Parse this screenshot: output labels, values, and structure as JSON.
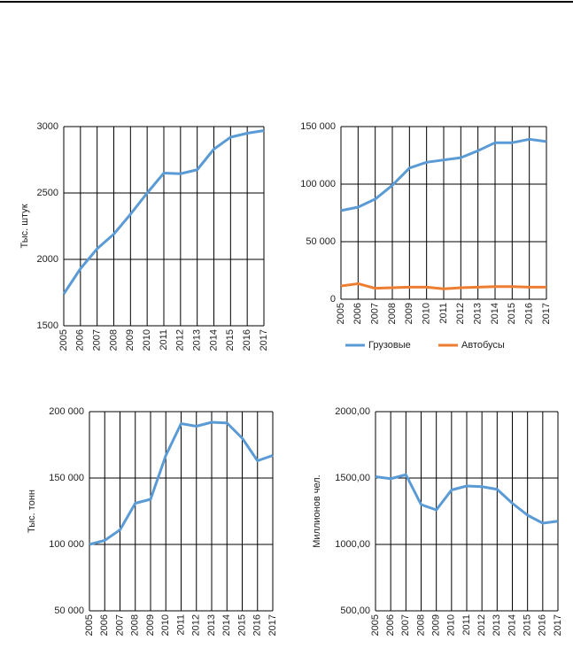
{
  "chart_data": [
    {
      "type": "line",
      "y_label": "Тыс. штук",
      "categories": [
        "2005",
        "2006",
        "2007",
        "2008",
        "2009",
        "2010",
        "2011",
        "2012",
        "2013",
        "2014",
        "2015",
        "2016",
        "2017"
      ],
      "series": [
        {
          "name": null,
          "color": "#5b9bd5",
          "values": [
            1740,
            1930,
            2080,
            2190,
            2340,
            2500,
            2650,
            2645,
            2675,
            2830,
            2920,
            2950,
            2970
          ]
        }
      ],
      "ylim": [
        1500,
        3000
      ],
      "yticks": [
        1500,
        2000,
        2500,
        3000
      ],
      "grid": true
    },
    {
      "type": "line",
      "categories": [
        "2005",
        "2006",
        "2007",
        "2008",
        "2009",
        "2010",
        "2011",
        "2012",
        "2013",
        "2014",
        "2015",
        "2016",
        "2017"
      ],
      "series": [
        {
          "name": "Грузовые",
          "color": "#5b9bd5",
          "values": [
            77000,
            80000,
            87000,
            99000,
            114000,
            119000,
            121000,
            123000,
            129000,
            136000,
            136000,
            139000,
            137000
          ]
        },
        {
          "name": "Автобусы",
          "color": "#ed7d31",
          "values": [
            11500,
            13500,
            9500,
            10000,
            10500,
            10500,
            9000,
            10000,
            10500,
            11000,
            11000,
            10500,
            10500
          ]
        }
      ],
      "ylim": [
        0,
        150000
      ],
      "yticks": [
        0,
        {
          "value": 50000,
          "label": "50 000"
        },
        {
          "value": 100000,
          "label": "100 000"
        },
        {
          "value": 150000,
          "label": "150 000"
        }
      ],
      "grid": true,
      "legend": "bottom"
    },
    {
      "type": "line",
      "y_label": "Тыс. тонн",
      "categories": [
        "2005",
        "2006",
        "2007",
        "2008",
        "2009",
        "2010",
        "2011",
        "2012",
        "2013",
        "2014",
        "2015",
        "2016",
        "2017"
      ],
      "series": [
        {
          "name": null,
          "color": "#5b9bd5",
          "values": [
            100000,
            103000,
            111000,
            131000,
            134000,
            167000,
            191000,
            189000,
            192000,
            191500,
            180000,
            163000,
            167000
          ]
        }
      ],
      "ylim": [
        50000,
        200000
      ],
      "yticks": [
        {
          "value": 50000,
          "label": "50 000"
        },
        {
          "value": 100000,
          "label": "100 000"
        },
        {
          "value": 150000,
          "label": "150 000"
        },
        {
          "value": 200000,
          "label": "200 000"
        }
      ],
      "grid": true
    },
    {
      "type": "line",
      "y_label": "Миллионов чел.",
      "categories": [
        "2005",
        "2006",
        "2007",
        "2008",
        "2009",
        "2010",
        "2011",
        "2012",
        "2013",
        "2014",
        "2015",
        "2016",
        "2017"
      ],
      "series": [
        {
          "name": null,
          "color": "#5b9bd5",
          "values": [
            1510,
            1495,
            1525,
            1300,
            1260,
            1410,
            1440,
            1435,
            1415,
            1310,
            1220,
            1160,
            1175
          ]
        }
      ],
      "ylim": [
        500,
        2000
      ],
      "yticks": [
        {
          "value": 500,
          "label": "500,00"
        },
        {
          "value": 1000,
          "label": "1000,00"
        },
        {
          "value": 1500,
          "label": "1500,00"
        },
        {
          "value": 2000,
          "label": "2000,00"
        }
      ],
      "grid": true
    }
  ]
}
